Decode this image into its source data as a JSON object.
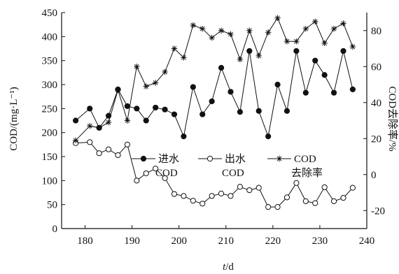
{
  "chart_data": {
    "type": "line",
    "xlabel_italic": "t",
    "xlabel_unit": "/d",
    "ylabel_left": "COD/(mg·L⁻¹)",
    "ylabel_right": "COD去除率/%",
    "xlim": [
      175,
      240
    ],
    "ylim_left": [
      0,
      450
    ],
    "ylim_right": [
      -30,
      90
    ],
    "xticks": [
      180,
      190,
      200,
      210,
      220,
      230,
      240
    ],
    "yticks_left": [
      0,
      50,
      100,
      150,
      200,
      250,
      300,
      350,
      400,
      450
    ],
    "yticks_right": [
      -20,
      0,
      20,
      40,
      60,
      80
    ],
    "grid": false,
    "legend_position": "middle",
    "series": [
      {
        "name": "进水COD",
        "legend_line1": "进水",
        "legend_line2": "COD",
        "marker": "filled-circle",
        "axis": "left",
        "x": [
          178,
          181,
          183,
          185,
          187,
          189,
          191,
          193,
          195,
          197,
          199,
          201,
          203,
          205,
          207,
          209,
          211,
          213,
          215,
          217,
          219,
          221,
          223,
          225,
          227,
          229,
          231,
          233,
          235,
          237
        ],
        "y": [
          225,
          250,
          210,
          235,
          290,
          255,
          250,
          225,
          252,
          248,
          238,
          192,
          295,
          238,
          265,
          335,
          285,
          243,
          370,
          245,
          192,
          300,
          245,
          370,
          283,
          350,
          320,
          283,
          370,
          290
        ]
      },
      {
        "name": "出水COD",
        "legend_line1": "出水",
        "legend_line2": "COD",
        "marker": "open-circle",
        "axis": "left",
        "x": [
          178,
          181,
          183,
          185,
          187,
          189,
          191,
          193,
          195,
          197,
          199,
          201,
          203,
          205,
          207,
          209,
          211,
          213,
          215,
          217,
          219,
          221,
          223,
          225,
          227,
          229,
          231,
          233,
          235,
          237
        ],
        "y": [
          178,
          180,
          157,
          165,
          153,
          175,
          100,
          115,
          125,
          105,
          72,
          68,
          58,
          52,
          68,
          73,
          68,
          87,
          80,
          85,
          45,
          45,
          65,
          95,
          57,
          53,
          86,
          57,
          64,
          85
        ]
      },
      {
        "name": "COD去除率",
        "legend_line1": "COD",
        "legend_line2": "去除率",
        "marker": "asterisk",
        "axis": "right",
        "x": [
          178,
          181,
          183,
          185,
          187,
          189,
          191,
          193,
          195,
          197,
          199,
          201,
          203,
          205,
          207,
          209,
          211,
          213,
          215,
          217,
          219,
          221,
          223,
          225,
          227,
          229,
          231,
          233,
          235,
          237
        ],
        "y": [
          19,
          27,
          26,
          29,
          47,
          30,
          60,
          49,
          51,
          57,
          70,
          65,
          83,
          81,
          76,
          80,
          78,
          64,
          80,
          66,
          79,
          87,
          74,
          74,
          81,
          85,
          73,
          81,
          84,
          71
        ]
      }
    ]
  }
}
